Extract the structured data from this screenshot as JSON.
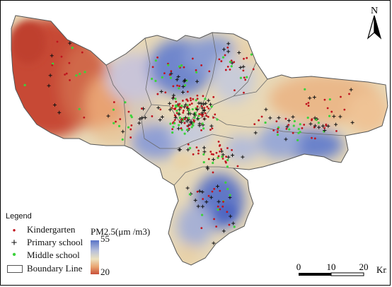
{
  "map": {
    "north_label": "N",
    "legend": {
      "title": "Legend",
      "items": [
        {
          "symbol": "•",
          "label": "Kindergarten",
          "color": "#c0141e"
        },
        {
          "symbol": "+",
          "label": "Primary school",
          "color": "#111111"
        },
        {
          "symbol": "•",
          "label": "Middle school",
          "color": "#3cd23c"
        },
        {
          "symbol": "box",
          "label": "Boundary Line",
          "color": "#777777"
        }
      ]
    },
    "pm_ramp": {
      "title": "PM2.5(μm /m3)",
      "high_label": "55",
      "low_label": "20",
      "high_color": "#5a74c8",
      "low_color": "#c8503a"
    },
    "scale": {
      "ticks": [
        "0",
        "10",
        "20"
      ],
      "unit": "Km"
    }
  }
}
